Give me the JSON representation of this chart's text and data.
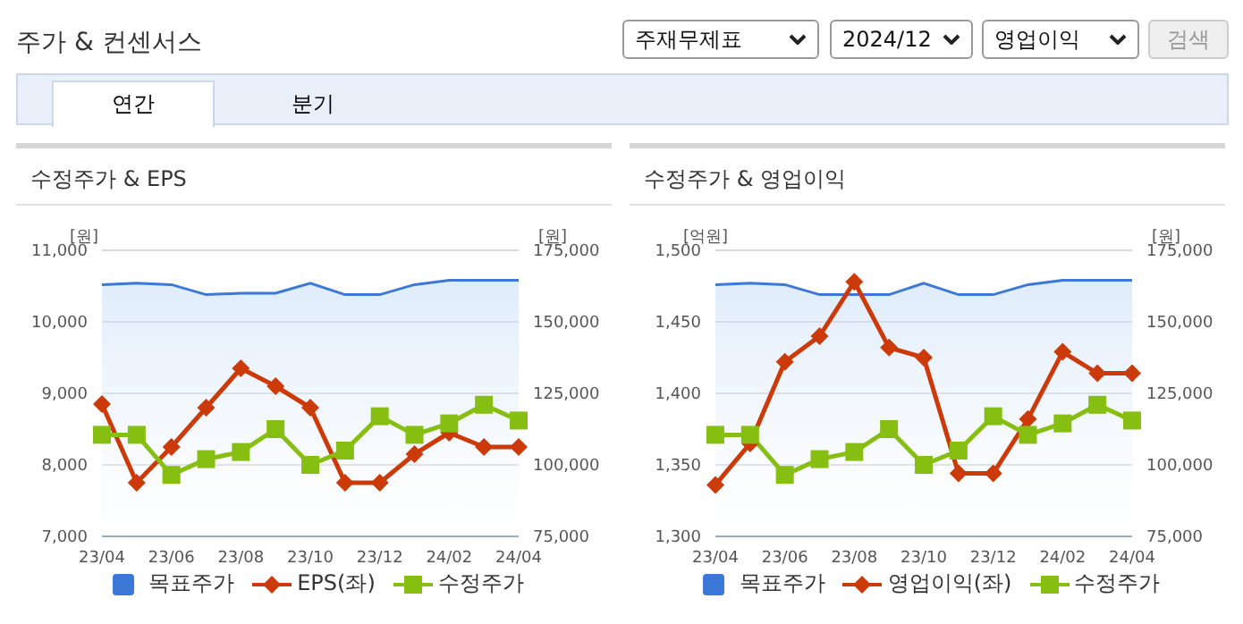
{
  "chart_data": [
    {
      "type": "line",
      "title": "수정주가 & EPS",
      "ylabel": "[원]",
      "y2label": "[원]",
      "annotations": [
        "주가 & 컨센서스",
        "주재무제표",
        "2024/12",
        "영업이익",
        "검색",
        "연간",
        "분기"
      ],
      "categories": [
        "23/04",
        null,
        "23/06",
        null,
        "23/08",
        null,
        "23/10",
        null,
        "23/12",
        null,
        "24/02",
        null,
        "24/04"
      ],
      "series": [
        {
          "name": "목표주가",
          "type": "area",
          "axis": "y2",
          "color": "#3b78d8",
          "marker": "none",
          "values": [
            163000,
            163500,
            163000,
            159500,
            160000,
            160000,
            163500,
            159500,
            159500,
            163000,
            164500,
            164500,
            164500
          ]
        },
        {
          "name": "EPS(좌)",
          "color": "#cc3a0a",
          "marker": "diamond",
          "values": [
            8850,
            7750,
            8250,
            8800,
            9350,
            9100,
            8800,
            7750,
            7750,
            8150,
            8450,
            8250,
            8250
          ]
        },
        {
          "name": "수정주가",
          "axis": "y2",
          "color": "#86be12",
          "marker": "square",
          "values": [
            110500,
            110500,
            96500,
            102000,
            104500,
            112500,
            100000,
            105000,
            117000,
            110500,
            114500,
            121000,
            115500
          ]
        }
      ],
      "ylim": [
        7000,
        11000
      ],
      "yticks": [
        {
          "value": 7000,
          "label": "7,000"
        },
        {
          "value": 8000,
          "label": "8,000"
        },
        {
          "value": 9000,
          "label": "9,000"
        },
        {
          "value": 10000,
          "label": "10,000"
        },
        {
          "value": 11000,
          "label": "11,000"
        }
      ],
      "y2lim": [
        75000,
        175000
      ],
      "y2ticks": [
        {
          "value": 75000,
          "label": "75,000"
        },
        {
          "value": 100000,
          "label": "100,000"
        },
        {
          "value": 125000,
          "label": "125,000"
        },
        {
          "value": 150000,
          "label": "150,000"
        },
        {
          "value": 175000,
          "label": "175,000"
        }
      ],
      "grid": "y",
      "legend": "bottom"
    },
    {
      "type": "line",
      "title": "수정주가 & 영업이익",
      "ylabel": "[억원]",
      "y2label": "[원]",
      "categories": [
        "23/04",
        null,
        "23/06",
        null,
        "23/08",
        null,
        "23/10",
        null,
        "23/12",
        null,
        "24/02",
        null,
        "24/04"
      ],
      "series": [
        {
          "name": "목표주가",
          "type": "area",
          "axis": "y2",
          "color": "#3b78d8",
          "marker": "none",
          "values": [
            163000,
            163500,
            163000,
            159500,
            159500,
            159500,
            163500,
            159500,
            159500,
            163000,
            164500,
            164500,
            164500
          ]
        },
        {
          "name": "영업이익(좌)",
          "color": "#cc3a0a",
          "marker": "diamond",
          "values": [
            1336,
            1365,
            1422,
            1440,
            1478,
            1432,
            1425,
            1344,
            1344,
            1382,
            1429,
            1414,
            1414
          ]
        },
        {
          "name": "수정주가",
          "axis": "y2",
          "color": "#86be12",
          "marker": "square",
          "values": [
            110500,
            110500,
            96500,
            102000,
            104500,
            112500,
            100000,
            105000,
            117000,
            110500,
            114500,
            121000,
            115500
          ]
        }
      ],
      "ylim": [
        1300,
        1500
      ],
      "yticks": [
        {
          "value": 1300,
          "label": "1,300"
        },
        {
          "value": 1350,
          "label": "1,350"
        },
        {
          "value": 1400,
          "label": "1,400"
        },
        {
          "value": 1450,
          "label": "1,450"
        },
        {
          "value": 1500,
          "label": "1,500"
        }
      ],
      "y2lim": [
        75000,
        175000
      ],
      "y2ticks": [
        {
          "value": 75000,
          "label": "75,000"
        },
        {
          "value": 100000,
          "label": "100,000"
        },
        {
          "value": 125000,
          "label": "125,000"
        },
        {
          "value": 150000,
          "label": "150,000"
        },
        {
          "value": 175000,
          "label": "175,000"
        }
      ],
      "grid": "y",
      "legend": "bottom"
    }
  ]
}
